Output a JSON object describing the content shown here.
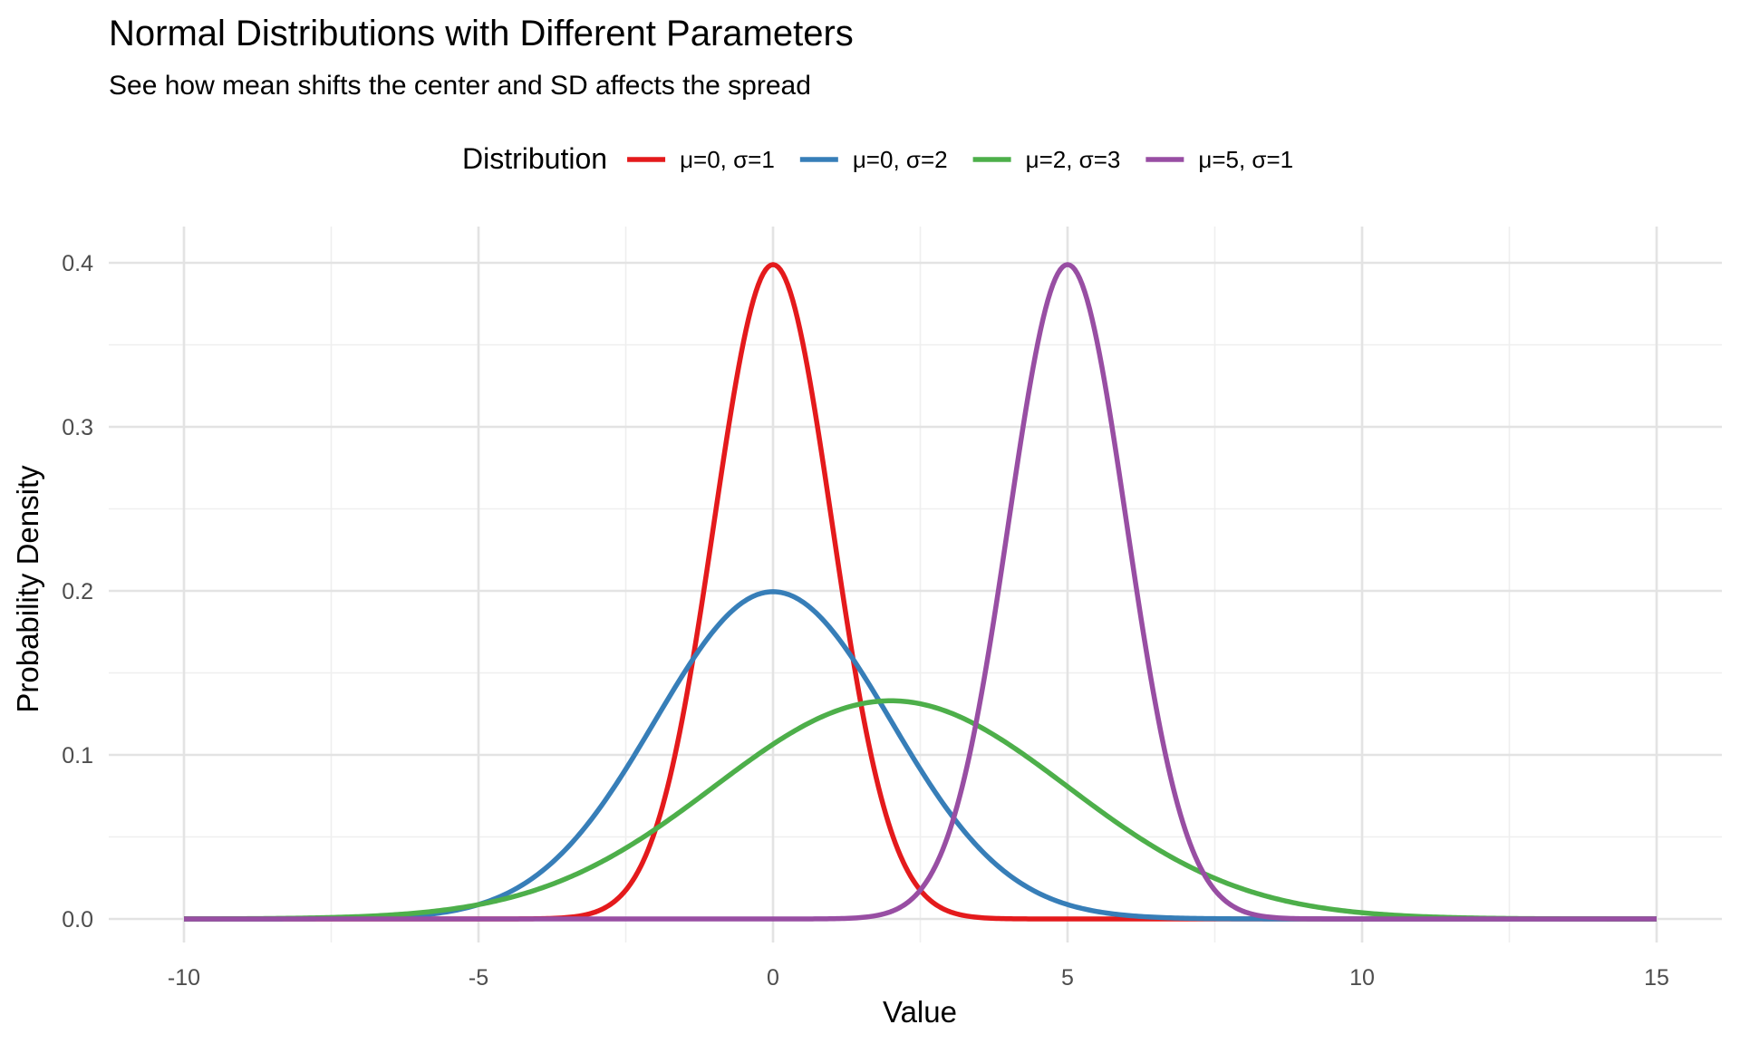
{
  "chart_data": {
    "type": "line",
    "title": "Normal Distributions with Different Parameters",
    "subtitle": "See how mean shifts the center and SD affects the spread",
    "xlabel": "Value",
    "ylabel": "Probability Density",
    "xlim": [
      -10,
      15
    ],
    "ylim": [
      0,
      0.4
    ],
    "x_ticks": [
      "-10",
      "-5",
      "0",
      "5",
      "10",
      "15"
    ],
    "x_tick_values": [
      -10,
      -5,
      0,
      5,
      10,
      15
    ],
    "y_ticks": [
      "0.0",
      "0.1",
      "0.2",
      "0.3",
      "0.4"
    ],
    "y_tick_values": [
      0,
      0.1,
      0.2,
      0.3,
      0.4
    ],
    "grid": true,
    "legend": {
      "title": "Distribution",
      "position": "top"
    },
    "series": [
      {
        "name": "μ=0, σ=1",
        "color": "#e41a1c",
        "x": [
          -10,
          -5,
          -4,
          -3.5,
          -3,
          -2.5,
          -2,
          -1.5,
          -1,
          -0.5,
          0,
          0.5,
          1,
          1.5,
          2,
          2.5,
          3,
          3.5,
          4,
          5,
          15
        ],
        "values": [
          0,
          0.0,
          0.0001,
          0.0009,
          0.0044,
          0.0175,
          0.054,
          0.1295,
          0.242,
          0.3521,
          0.3989,
          0.3521,
          0.242,
          0.1295,
          0.054,
          0.0175,
          0.0044,
          0.0009,
          0.0001,
          0.0,
          0
        ]
      },
      {
        "name": "μ=0, σ=2",
        "color": "#377eb8",
        "x": [
          -10,
          -8,
          -7,
          -6,
          -5,
          -4,
          -3,
          -2,
          -1,
          0,
          1,
          2,
          3,
          4,
          5,
          6,
          7,
          8,
          10,
          15
        ],
        "values": [
          0.0,
          0.0001,
          0.0004,
          0.0022,
          0.0088,
          0.027,
          0.0648,
          0.121,
          0.176,
          0.1995,
          0.176,
          0.121,
          0.0648,
          0.027,
          0.0088,
          0.0022,
          0.0004,
          0.0001,
          0.0,
          0
        ]
      },
      {
        "name": "μ=2, σ=3",
        "color": "#4daf4a",
        "x": [
          -10,
          -8,
          -6,
          -5,
          -4,
          -3,
          -2,
          -1,
          0,
          1,
          2,
          3,
          4,
          5,
          6,
          7,
          8,
          9,
          10,
          11,
          12,
          13,
          15
        ],
        "values": [
          0.0001,
          0.0005,
          0.0038,
          0.0087,
          0.018,
          0.0332,
          0.0547,
          0.0807,
          0.1065,
          0.1258,
          0.133,
          0.1258,
          0.1065,
          0.0807,
          0.0547,
          0.0332,
          0.018,
          0.0087,
          0.0038,
          0.0015,
          0.0005,
          0.0001,
          0.0
        ]
      },
      {
        "name": "μ=5, σ=1",
        "color": "#984ea3",
        "x": [
          -10,
          0,
          1,
          1.5,
          2,
          2.5,
          3,
          3.5,
          4,
          4.5,
          5,
          5.5,
          6,
          6.5,
          7,
          7.5,
          8,
          8.5,
          9,
          10,
          15
        ],
        "values": [
          0,
          0.0,
          0.0001,
          0.0009,
          0.0044,
          0.0175,
          0.054,
          0.1295,
          0.242,
          0.3521,
          0.3989,
          0.3521,
          0.242,
          0.1295,
          0.054,
          0.0175,
          0.0044,
          0.0009,
          0.0001,
          0.0,
          0
        ]
      }
    ]
  }
}
